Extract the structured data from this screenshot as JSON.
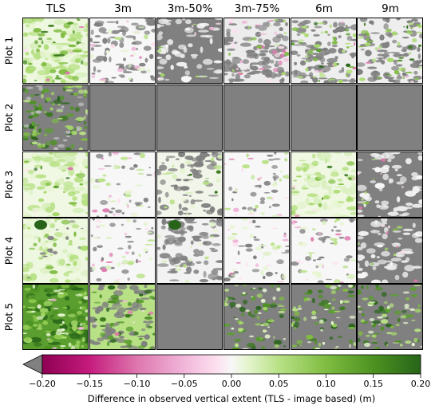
{
  "chart_data": {
    "type": "heatmap",
    "columns": [
      "TLS",
      "3m",
      "3m-50%",
      "3m-75%",
      "6m",
      "9m"
    ],
    "rows": [
      "Plot 1",
      "Plot 2",
      "Plot 3",
      "Plot 4",
      "Plot 5"
    ],
    "panel_content": [
      [
        "dense-green",
        "mostly-white-some-gray",
        "mostly-gray",
        "mixed-gray-pink",
        "mixed-gray-green",
        "mixed-gray-green"
      ],
      [
        "gray-green-texture",
        "no-data",
        "no-data",
        "no-data",
        "no-data",
        "no-data"
      ],
      [
        "light-green",
        "mostly-white",
        "mixed-white-gray",
        "mostly-white",
        "light-green",
        "mostly-gray"
      ],
      [
        "light-green-dark-patch",
        "mostly-white",
        "mixed-gray-dark-patch",
        "mostly-white",
        "mostly-white",
        "mostly-gray"
      ],
      [
        "dark-green",
        "mixed-green-gray",
        "no-data",
        "gray-green-speckle",
        "gray-green-speckle",
        "gray-green-speckle"
      ]
    ],
    "colorbar": {
      "colormap": "PiYG",
      "range": [
        -0.2,
        0.2
      ],
      "ticks": [
        "−0.20",
        "−0.15",
        "−0.10",
        "−0.05",
        "0.00",
        "0.05",
        "0.10",
        "0.15",
        "0.20"
      ],
      "extend": "min",
      "under_color": "#808080",
      "label": "Difference in observed vertical extent (TLS - image based) (m)"
    },
    "colors": {
      "no_data": "#808080",
      "pink": "#c51b7d",
      "green": "#4d9221",
      "white": "#f7f7f7"
    }
  }
}
